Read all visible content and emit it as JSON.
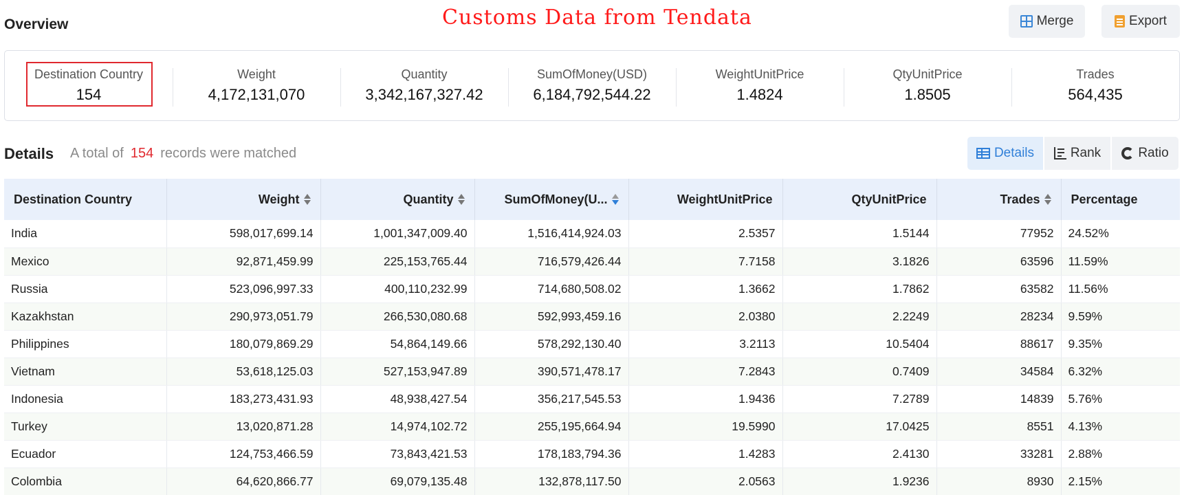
{
  "header": {
    "title": "Overview",
    "watermark": "Customs Data from Tendata",
    "merge_label": "Merge",
    "export_label": "Export"
  },
  "summary": [
    {
      "label": "Destination Country",
      "value": "154"
    },
    {
      "label": "Weight",
      "value": "4,172,131,070"
    },
    {
      "label": "Quantity",
      "value": "3,342,167,327.42"
    },
    {
      "label": "SumOfMoney(USD)",
      "value": "6,184,792,544.22"
    },
    {
      "label": "WeightUnitPrice",
      "value": "1.4824"
    },
    {
      "label": "QtyUnitPrice",
      "value": "1.8505"
    },
    {
      "label": "Trades",
      "value": "564,435"
    }
  ],
  "details": {
    "title": "Details",
    "prefix": "A total of",
    "count": "154",
    "suffix": "records were matched",
    "views": {
      "details": "Details",
      "rank": "Rank",
      "ratio": "Ratio"
    }
  },
  "table": {
    "columns": [
      "Destination Country",
      "Weight",
      "Quantity",
      "SumOfMoney(U...",
      "WeightUnitPrice",
      "QtyUnitPrice",
      "Trades",
      "Percentage"
    ],
    "rows": [
      [
        "India",
        "598,017,699.14",
        "1,001,347,009.40",
        "1,516,414,924.03",
        "2.5357",
        "1.5144",
        "77952",
        "24.52%"
      ],
      [
        "Mexico",
        "92,871,459.99",
        "225,153,765.44",
        "716,579,426.44",
        "7.7158",
        "3.1826",
        "63596",
        "11.59%"
      ],
      [
        "Russia",
        "523,096,997.33",
        "400,110,232.99",
        "714,680,508.02",
        "1.3662",
        "1.7862",
        "63582",
        "11.56%"
      ],
      [
        "Kazakhstan",
        "290,973,051.79",
        "266,530,080.68",
        "592,993,459.16",
        "2.0380",
        "2.2249",
        "28234",
        "9.59%"
      ],
      [
        "Philippines",
        "180,079,869.29",
        "54,864,149.66",
        "578,292,130.40",
        "3.2113",
        "10.5404",
        "88617",
        "9.35%"
      ],
      [
        "Vietnam",
        "53,618,125.03",
        "527,153,947.89",
        "390,571,478.17",
        "7.2843",
        "0.7409",
        "34584",
        "6.32%"
      ],
      [
        "Indonesia",
        "183,273,431.93",
        "48,938,427.54",
        "356,217,545.53",
        "1.9436",
        "7.2789",
        "14839",
        "5.76%"
      ],
      [
        "Turkey",
        "13,020,871.28",
        "14,974,102.72",
        "255,195,664.94",
        "19.5990",
        "17.0425",
        "8551",
        "4.13%"
      ],
      [
        "Ecuador",
        "124,753,466.59",
        "73,843,421.53",
        "178,183,794.36",
        "1.4283",
        "2.4130",
        "33281",
        "2.88%"
      ],
      [
        "Colombia",
        "64,620,866.77",
        "69,079,135.48",
        "132,878,117.50",
        "2.0563",
        "1.9236",
        "8930",
        "2.15%"
      ]
    ]
  }
}
